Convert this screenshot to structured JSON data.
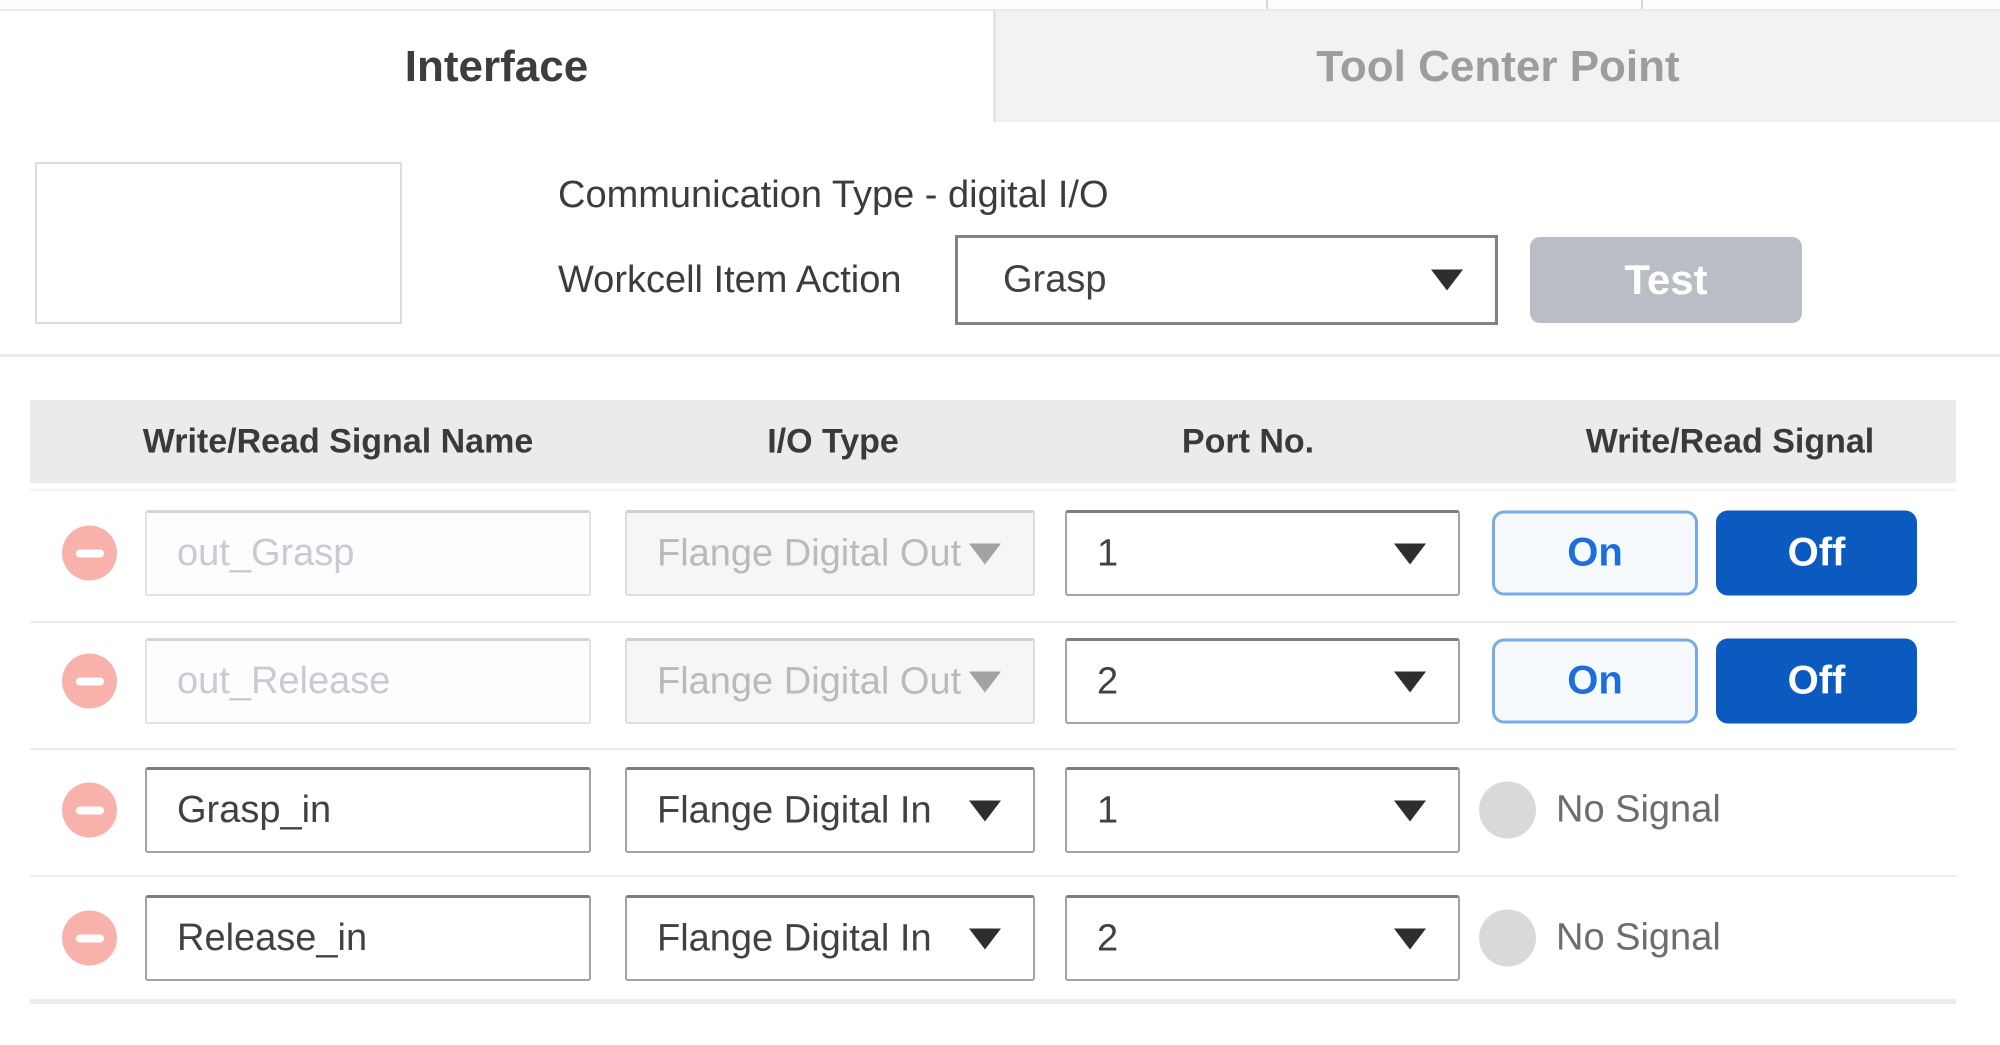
{
  "tabs": [
    {
      "label": "Interface",
      "active": true
    },
    {
      "label": "Tool Center Point",
      "active": false
    }
  ],
  "settings": {
    "communication_type": "Communication Type - digital I/O",
    "action_label": "Workcell Item Action",
    "action_value": "Grasp",
    "test_label": "Test"
  },
  "table": {
    "headers": [
      "Write/Read Signal Name",
      "I/O Type",
      "Port No.",
      "Write/Read Signal"
    ],
    "rows": [
      {
        "signal_name": "out_Grasp",
        "io_type": "Flange Digital Out",
        "port": "1",
        "signal_type": "write",
        "on_label": "On",
        "off_label": "Off",
        "disabled": true
      },
      {
        "signal_name": "out_Release",
        "io_type": "Flange Digital Out",
        "port": "2",
        "signal_type": "write",
        "on_label": "On",
        "off_label": "Off",
        "disabled": true
      },
      {
        "signal_name": "Grasp_in",
        "io_type": "Flange Digital In",
        "port": "1",
        "signal_type": "read",
        "status_label": "No Signal",
        "disabled": false
      },
      {
        "signal_name": "Release_in",
        "io_type": "Flange Digital In",
        "port": "2",
        "signal_type": "read",
        "status_label": "No Signal",
        "disabled": false
      }
    ]
  },
  "colors": {
    "off_button_blue": "#0b5ac0",
    "on_text_blue": "#1d6edd",
    "on_border_blue": "#79aae8",
    "remove_icon_pink": "#f9b2ab",
    "no_signal_gray": "#d9d9d9",
    "inactive_tab_bg": "#f2f2f2",
    "header_bg": "#ebebeb",
    "test_button_gray": "#b9bdc4"
  }
}
